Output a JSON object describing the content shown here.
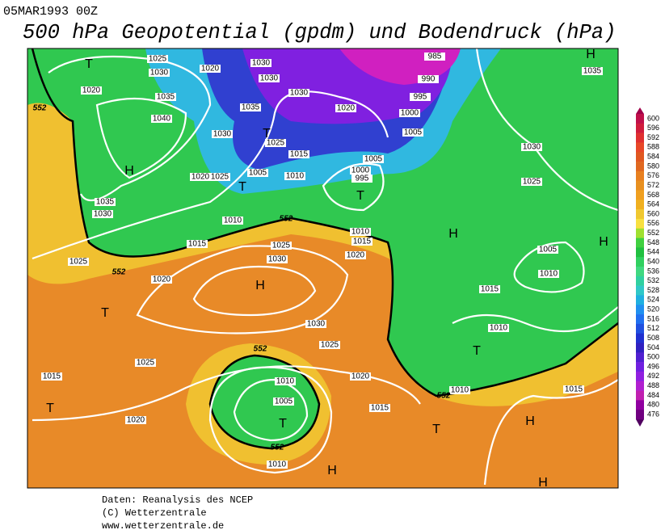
{
  "header": {
    "date": "05MAR1993 00Z",
    "title": "500 hPa Geopotential (gpdm) und Bodendruck (hPa)"
  },
  "map": {
    "isobar_labels": [
      1025,
      1030,
      1020,
      1030,
      1030,
      1030,
      1035,
      1020,
      985,
      990,
      995,
      1000,
      1005,
      1035,
      1020,
      1035,
      1040,
      1030,
      1025,
      1015,
      1005,
      1000,
      995,
      1030,
      1025,
      1020,
      1025,
      1005,
      1010,
      1035,
      1030,
      1010,
      1015,
      1010,
      1015,
      1025,
      1030,
      1020,
      1025,
      1020,
      1005,
      1010,
      1015,
      1030,
      1010,
      1025,
      1025,
      1015,
      1020,
      1010,
      1010,
      1015,
      1005,
      1015,
      1020,
      1010
    ],
    "geopotential_labels": [
      552,
      552,
      552,
      552,
      552,
      552
    ],
    "pressure_centers": [
      "T",
      "H",
      "T",
      "H",
      "T",
      "T",
      "H",
      "H",
      "T",
      "H",
      "T",
      "T",
      "T",
      "T",
      "H",
      "H",
      "H"
    ]
  },
  "legend": {
    "levels": [
      600,
      596,
      592,
      588,
      584,
      580,
      576,
      572,
      568,
      564,
      560,
      556,
      552,
      548,
      544,
      540,
      536,
      532,
      528,
      524,
      520,
      516,
      512,
      508,
      504,
      500,
      496,
      492,
      488,
      484,
      480,
      476
    ],
    "colors": [
      "#c0104a",
      "#d01c3c",
      "#e03030",
      "#e84828",
      "#e05820",
      "#e06820",
      "#e88020",
      "#e89020",
      "#f0a020",
      "#f0b020",
      "#f0c830",
      "#f8e040",
      "#a0e030",
      "#40d040",
      "#20c040",
      "#30d060",
      "#40d880",
      "#30d0a0",
      "#30c8c8",
      "#20b0e0",
      "#2090f0",
      "#2070f0",
      "#2050e0",
      "#2030d0",
      "#3020c0",
      "#5020d0",
      "#7020e0",
      "#9020e0",
      "#b020d0",
      "#c020b0",
      "#9000a0",
      "#700080"
    ]
  },
  "footer": {
    "line1": "Daten: Reanalysis des NCEP",
    "line2": "(C) Wetterzentrale",
    "line3": "www.wetterzentrale.de"
  }
}
